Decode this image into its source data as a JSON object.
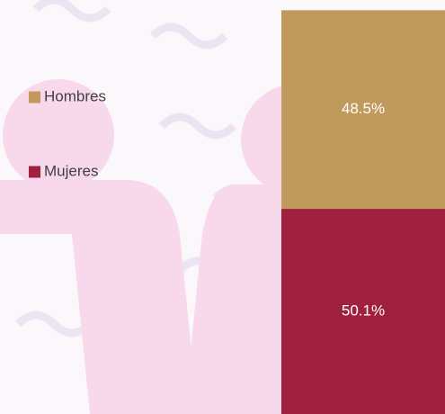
{
  "chart_data": {
    "type": "bar",
    "stacked": true,
    "categories": [
      null
    ],
    "series": [
      {
        "name": "Hombres",
        "color": "#bf9a5c",
        "values": [
          48.5
        ],
        "value_labels": [
          "48.5%"
        ]
      },
      {
        "name": "Mujeres",
        "color": "#a0213f",
        "values": [
          50.1
        ],
        "value_labels": [
          "50.1%"
        ]
      }
    ],
    "ylim": [
      0,
      100
    ],
    "legend": "left"
  }
}
